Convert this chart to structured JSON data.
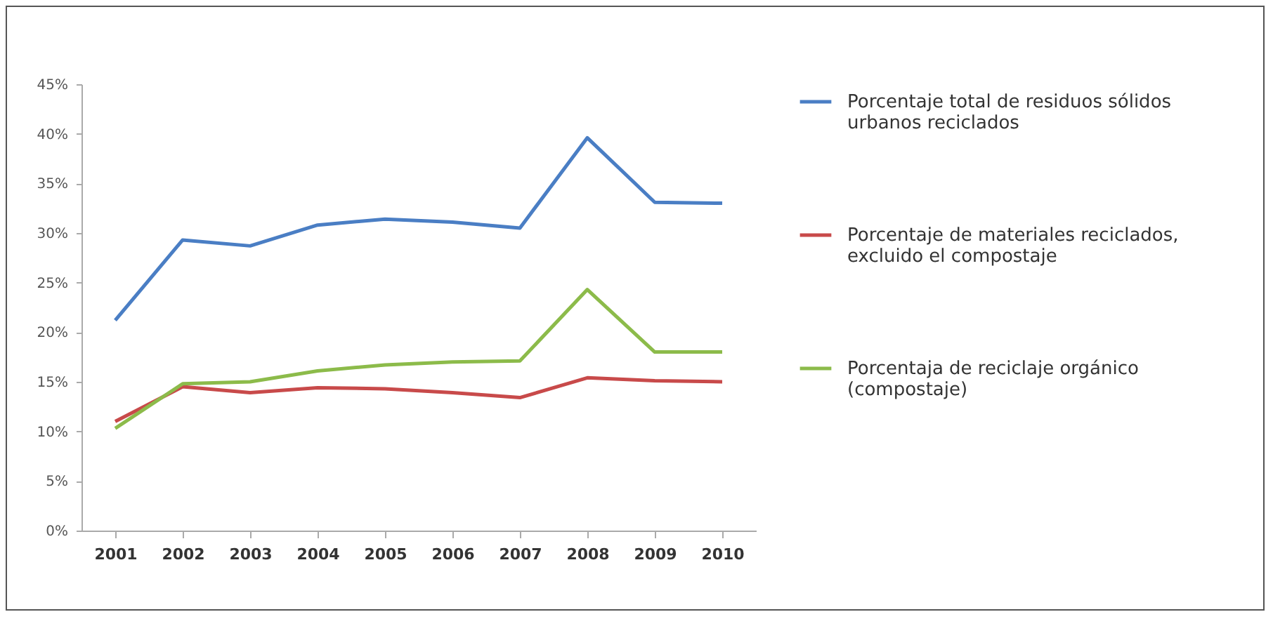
{
  "chart_data": {
    "type": "line",
    "categories": [
      "2001",
      "2002",
      "2003",
      "2004",
      "2005",
      "2006",
      "2007",
      "2008",
      "2009",
      "2010"
    ],
    "series": [
      {
        "name": "Porcentaje total de residuos sólidos urbanos reciclados",
        "color": "#4a7ec4",
        "values": [
          21.2,
          29.3,
          28.7,
          30.8,
          31.4,
          31.1,
          30.5,
          39.6,
          33.1,
          33.0
        ]
      },
      {
        "name": "Porcentaje de materiales reciclados, excluido el compostaje",
        "color": "#c84a4a",
        "values": [
          11.0,
          14.5,
          13.9,
          14.4,
          14.3,
          13.9,
          13.4,
          15.4,
          15.1,
          15.0
        ]
      },
      {
        "name": "Porcentaja de reciclaje orgánico (compostaje)",
        "color": "#8cbb4a",
        "values": [
          10.3,
          14.8,
          15.0,
          16.1,
          16.7,
          17.0,
          17.1,
          24.3,
          18.0,
          18.0
        ]
      }
    ],
    "ylim": [
      0,
      45
    ],
    "yticks": [
      {
        "value": 0,
        "label": "0%"
      },
      {
        "value": 5,
        "label": "5%"
      },
      {
        "value": 10,
        "label": "10%"
      },
      {
        "value": 15,
        "label": "15%"
      },
      {
        "value": 20,
        "label": "20%"
      },
      {
        "value": 25,
        "label": "25%"
      },
      {
        "value": 30,
        "label": "30%"
      },
      {
        "value": 35,
        "label": "35%"
      },
      {
        "value": 40,
        "label": "40%"
      },
      {
        "value": 45,
        "label": "45%"
      }
    ],
    "grid": false,
    "legend": "right",
    "marker": "none",
    "line_style": "solid"
  }
}
